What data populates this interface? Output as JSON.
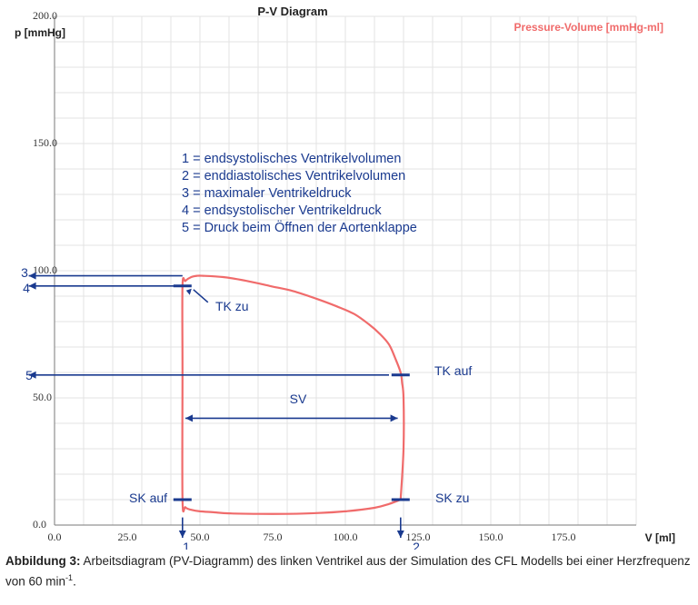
{
  "colors": {
    "curve": "#f06b6b",
    "annotation": "#1a3a8f",
    "grid": "#e3e3e3",
    "axis": "#7a7a7a",
    "legend_text": "#f06b6b"
  },
  "chart_data": {
    "type": "line",
    "title": "P-V Diagram",
    "ylabel": "p [mmHg]",
    "xlabel": "V [ml]",
    "xlim": [
      0,
      200
    ],
    "ylim": [
      0,
      200
    ],
    "x_ticks": [
      "0.0",
      "25.0",
      "50.0",
      "75.0",
      "100.0",
      "125.0",
      "150.0",
      "175.0"
    ],
    "y_ticks": [
      "0.0",
      "50.0",
      "100.0",
      "150.0",
      "200.0"
    ],
    "grid": true,
    "legend": [
      {
        "label": "Pressure-Volume [mmHg-ml]",
        "position": "top-right"
      }
    ],
    "series": [
      {
        "name": "Pressure-Volume [mmHg-ml]",
        "x": [
          119,
          120,
          120,
          119.5,
          119,
          117,
          115,
          112,
          108,
          103,
          97,
          90,
          82,
          74,
          66,
          58,
          51,
          49,
          47,
          45,
          44,
          44,
          44,
          45,
          47,
          50,
          55,
          60,
          70,
          80,
          90,
          100,
          110,
          115,
          119
        ],
        "y": [
          10,
          30,
          50,
          56,
          60,
          66,
          71,
          75,
          79,
          83,
          86,
          89,
          92,
          94,
          96,
          97.5,
          98,
          98,
          97.5,
          96,
          94,
          60,
          10,
          7,
          6,
          5.4,
          5,
          4.6,
          4.4,
          4.4,
          4.7,
          5.4,
          6.8,
          8.3,
          10
        ]
      }
    ],
    "annotations": {
      "info_box": [
        "1 = endsystolisches Ventrikelvolumen",
        "2 = enddiastolisches Ventrikelvolumen",
        "3 = maximaler Ventrikeldruck",
        "4 = endsystolischer Ventrikeldruck",
        "5 = Druck beim Öffnen der Aortenklappe"
      ],
      "points": [
        {
          "label": "TK zu",
          "x": 44,
          "y": 94
        },
        {
          "label": "TK auf",
          "x": 119,
          "y": 59
        },
        {
          "label": "SK auf",
          "x": 44,
          "y": 10
        },
        {
          "label": "SK zu",
          "x": 119,
          "y": 10
        }
      ],
      "sv_label": "SV",
      "marker_numbers": [
        "1",
        "2",
        "3",
        "4",
        "5"
      ]
    }
  },
  "caption": {
    "label": "Abbildung 3:",
    "text": "Arbeitsdiagram (PV-Diagramm) des linken Ventrikel aus der Simulation des CFL Modells bei einer Herzfrequenz von 60 min",
    "superscript": "-1",
    "end": "."
  }
}
